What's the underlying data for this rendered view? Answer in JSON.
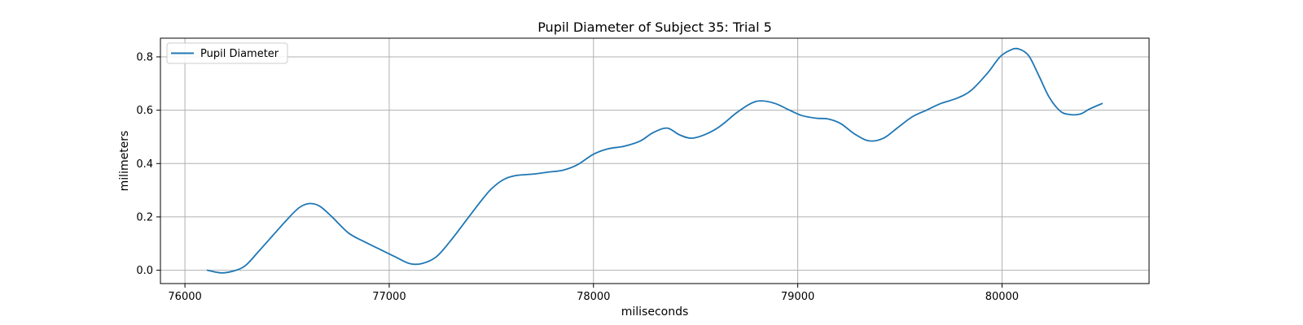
{
  "chart_data": {
    "type": "line",
    "title": "Pupil Diameter of Subject 35: Trial 5",
    "xlabel": "miliseconds",
    "ylabel": "milimeters",
    "xlim": [
      75880,
      80720
    ],
    "ylim": [
      -0.05,
      0.87
    ],
    "xticks": [
      76000,
      77000,
      78000,
      79000,
      80000
    ],
    "yticks": [
      0.0,
      0.2,
      0.4,
      0.6,
      0.8
    ],
    "xtick_labels": [
      "76000",
      "77000",
      "78000",
      "79000",
      "80000"
    ],
    "ytick_labels": [
      "0.0",
      "0.2",
      "0.4",
      "0.6",
      "0.8"
    ],
    "grid": true,
    "legend_position": "top-left",
    "colors": {
      "series": "#1f77b4",
      "grid": "#b0b0b0"
    },
    "series": [
      {
        "name": "Pupil Diameter",
        "x": [
          76110,
          76180,
          76250,
          76300,
          76360,
          76430,
          76500,
          76560,
          76610,
          76660,
          76720,
          76800,
          76870,
          76950,
          77030,
          77100,
          77160,
          77230,
          77300,
          77380,
          77450,
          77500,
          77560,
          77620,
          77700,
          77780,
          77850,
          77920,
          78000,
          78070,
          78150,
          78230,
          78290,
          78360,
          78420,
          78480,
          78550,
          78620,
          78700,
          78770,
          78820,
          78890,
          78960,
          79020,
          79090,
          79150,
          79210,
          79280,
          79350,
          79420,
          79490,
          79560,
          79630,
          79700,
          79780,
          79850,
          79930,
          79990,
          80040,
          80080,
          80130,
          80180,
          80230,
          80280,
          80320,
          80380,
          80430,
          80490
        ],
        "y": [
          0.0,
          -0.01,
          0.0,
          0.02,
          0.07,
          0.13,
          0.19,
          0.235,
          0.25,
          0.24,
          0.2,
          0.14,
          0.11,
          0.08,
          0.05,
          0.025,
          0.025,
          0.05,
          0.11,
          0.19,
          0.26,
          0.305,
          0.34,
          0.355,
          0.36,
          0.368,
          0.375,
          0.395,
          0.435,
          0.455,
          0.465,
          0.485,
          0.515,
          0.533,
          0.508,
          0.495,
          0.51,
          0.54,
          0.59,
          0.625,
          0.635,
          0.625,
          0.6,
          0.58,
          0.57,
          0.567,
          0.55,
          0.51,
          0.485,
          0.495,
          0.535,
          0.575,
          0.6,
          0.625,
          0.645,
          0.675,
          0.74,
          0.8,
          0.825,
          0.83,
          0.805,
          0.73,
          0.65,
          0.6,
          0.585,
          0.585,
          0.605,
          0.625
        ]
      }
    ]
  }
}
